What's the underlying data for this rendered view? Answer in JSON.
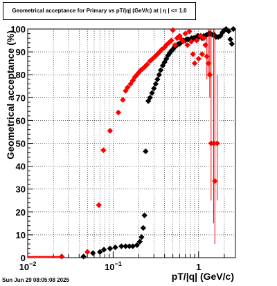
{
  "chart_data": {
    "type": "scatter",
    "title": "Geometrical acceptance for Primary vs pT/|q| (GeV/c) at |  η  | <= 1.0",
    "xlabel": "pT/|q| (GeV/c)",
    "ylabel": "Geometrical acceptance (%)",
    "xscale": "log",
    "xlim": [
      0.01,
      2.7
    ],
    "ylim": [
      0,
      100
    ],
    "grid": true,
    "y_ticks": [
      0,
      10,
      20,
      30,
      40,
      50,
      60,
      70,
      80,
      90,
      100
    ],
    "y_tick_labels": [
      "0",
      "10",
      "20",
      "30",
      "40",
      "50",
      "60",
      "70",
      "80",
      "90",
      "100"
    ],
    "x_major_ticks": [
      {
        "value": 0.01,
        "base": "10",
        "exp": "−2"
      },
      {
        "value": 0.1,
        "base": "10",
        "exp": "−1"
      },
      {
        "value": 1,
        "base": "1",
        "exp": ""
      }
    ],
    "x_minor_ticks": [
      0.02,
      0.03,
      0.04,
      0.05,
      0.06,
      0.07,
      0.08,
      0.09,
      0.2,
      0.3,
      0.4,
      0.5,
      0.6,
      0.7,
      0.8,
      0.9,
      2
    ],
    "series": [
      {
        "color": "#000000",
        "points": [
          {
            "x": 0.025,
            "y": 0.5
          },
          {
            "x": 0.045,
            "y": 0.5
          },
          {
            "x": 0.058,
            "y": 2
          },
          {
            "x": 0.07,
            "y": 2.5
          },
          {
            "x": 0.078,
            "y": 3.5
          },
          {
            "x": 0.092,
            "y": 4
          },
          {
            "x": 0.106,
            "y": 4.5
          },
          {
            "x": 0.125,
            "y": 5
          },
          {
            "x": 0.14,
            "y": 5
          },
          {
            "x": 0.155,
            "y": 5
          },
          {
            "x": 0.17,
            "y": 5
          },
          {
            "x": 0.19,
            "y": 5.5
          },
          {
            "x": 0.205,
            "y": 7
          },
          {
            "x": 0.215,
            "y": 9
          },
          {
            "x": 0.225,
            "y": 13
          },
          {
            "x": 0.233,
            "y": 18.5
          },
          {
            "x": 0.24,
            "y": 46.5
          },
          {
            "x": 0.258,
            "y": 68.5
          },
          {
            "x": 0.27,
            "y": 70
          },
          {
            "x": 0.285,
            "y": 72
          },
          {
            "x": 0.3,
            "y": 74
          },
          {
            "x": 0.315,
            "y": 76
          },
          {
            "x": 0.33,
            "y": 78
          },
          {
            "x": 0.345,
            "y": 80
          },
          {
            "x": 0.36,
            "y": 82
          },
          {
            "x": 0.38,
            "y": 84
          },
          {
            "x": 0.4,
            "y": 85.5
          },
          {
            "x": 0.42,
            "y": 87
          },
          {
            "x": 0.44,
            "y": 88.5
          },
          {
            "x": 0.46,
            "y": 89.5
          },
          {
            "x": 0.48,
            "y": 90.5
          },
          {
            "x": 0.5,
            "y": 91
          },
          {
            "x": 0.52,
            "y": 92
          },
          {
            "x": 0.54,
            "y": 92.5
          },
          {
            "x": 0.56,
            "y": 93
          },
          {
            "x": 0.58,
            "y": 93.5
          },
          {
            "x": 0.6,
            "y": 93.5
          },
          {
            "x": 0.62,
            "y": 94
          },
          {
            "x": 0.64,
            "y": 94.5
          },
          {
            "x": 0.67,
            "y": 95
          },
          {
            "x": 0.7,
            "y": 95
          },
          {
            "x": 0.73,
            "y": 95.5
          },
          {
            "x": 0.76,
            "y": 95.5
          },
          {
            "x": 0.8,
            "y": 95.5
          },
          {
            "x": 0.83,
            "y": 96
          },
          {
            "x": 0.87,
            "y": 96
          },
          {
            "x": 0.9,
            "y": 96
          },
          {
            "x": 0.94,
            "y": 96.5
          },
          {
            "x": 0.98,
            "y": 97
          },
          {
            "x": 1.02,
            "y": 96.5
          },
          {
            "x": 1.06,
            "y": 97
          },
          {
            "x": 1.1,
            "y": 96
          },
          {
            "x": 1.15,
            "y": 97
          },
          {
            "x": 1.2,
            "y": 97
          },
          {
            "x": 1.25,
            "y": 97.5
          },
          {
            "x": 1.32,
            "y": 98
          },
          {
            "x": 1.38,
            "y": 98
          },
          {
            "x": 1.45,
            "y": 97.5
          },
          {
            "x": 1.52,
            "y": 97.5
          },
          {
            "x": 1.6,
            "y": 96.5
          },
          {
            "x": 1.7,
            "y": 96.5
          },
          {
            "x": 1.8,
            "y": 97
          },
          {
            "x": 1.9,
            "y": 98.5
          },
          {
            "x": 2.0,
            "y": 99.5
          },
          {
            "x": 2.1,
            "y": 100
          },
          {
            "x": 2.25,
            "y": 99
          },
          {
            "x": 2.35,
            "y": 95.5
          },
          {
            "x": 2.45,
            "y": 93.5
          },
          {
            "x": 2.55,
            "y": 100
          }
        ]
      },
      {
        "color": "#ff0000",
        "points": [
          {
            "x": 0.025,
            "y": 0.5
          },
          {
            "x": 0.05,
            "y": 2.5
          },
          {
            "x": 0.068,
            "y": 23
          },
          {
            "x": 0.077,
            "y": 47
          },
          {
            "x": 0.092,
            "y": 55.5
          },
          {
            "x": 0.115,
            "y": 63.5
          },
          {
            "x": 0.13,
            "y": 69
          },
          {
            "x": 0.14,
            "y": 73
          },
          {
            "x": 0.148,
            "y": 74.5
          },
          {
            "x": 0.16,
            "y": 76
          },
          {
            "x": 0.17,
            "y": 77.5
          },
          {
            "x": 0.18,
            "y": 79
          },
          {
            "x": 0.19,
            "y": 80
          },
          {
            "x": 0.2,
            "y": 81
          },
          {
            "x": 0.21,
            "y": 82
          },
          {
            "x": 0.22,
            "y": 82.5
          },
          {
            "x": 0.235,
            "y": 83.5
          },
          {
            "x": 0.25,
            "y": 84.5
          },
          {
            "x": 0.27,
            "y": 86
          },
          {
            "x": 0.29,
            "y": 87
          },
          {
            "x": 0.31,
            "y": 88
          },
          {
            "x": 0.33,
            "y": 89
          },
          {
            "x": 0.35,
            "y": 90
          },
          {
            "x": 0.37,
            "y": 91
          },
          {
            "x": 0.4,
            "y": 92
          },
          {
            "x": 0.42,
            "y": 93
          },
          {
            "x": 0.45,
            "y": 94
          },
          {
            "x": 0.48,
            "y": 95
          },
          {
            "x": 0.5,
            "y": 99.5
          },
          {
            "x": 0.53,
            "y": 93
          },
          {
            "x": 0.56,
            "y": 96
          },
          {
            "x": 0.6,
            "y": 97
          },
          {
            "x": 0.63,
            "y": 95.5
          },
          {
            "x": 0.66,
            "y": 94.5
          },
          {
            "x": 0.7,
            "y": 98
          },
          {
            "x": 0.74,
            "y": 93
          },
          {
            "x": 0.78,
            "y": 99
          },
          {
            "x": 0.82,
            "y": 94.5
          },
          {
            "x": 0.86,
            "y": 89
          },
          {
            "x": 0.9,
            "y": 85
          },
          {
            "x": 0.95,
            "y": 95
          },
          {
            "x": 1.0,
            "y": 87
          },
          {
            "x": 1.05,
            "y": 97
          },
          {
            "x": 1.1,
            "y": 89
          },
          {
            "x": 1.15,
            "y": 96
          },
          {
            "x": 1.2,
            "y": 93
          },
          {
            "x": 1.25,
            "y": 88
          },
          {
            "x": 1.3,
            "y": 85
          },
          {
            "x": 1.35,
            "y": 80
          },
          {
            "x": 1.4,
            "y": 50
          },
          {
            "x": 1.5,
            "y": 50
          },
          {
            "x": 1.55,
            "y": 33.5
          },
          {
            "x": 1.65,
            "y": 50
          }
        ]
      }
    ]
  },
  "footer": {
    "timestamp": "Sun Jun 29 08:05:08 2025"
  }
}
